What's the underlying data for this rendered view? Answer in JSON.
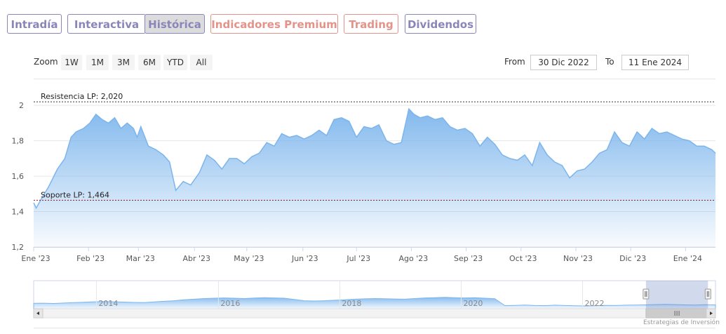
{
  "tabs": [
    {
      "label": "Intradía",
      "active": false,
      "premium": false
    },
    {
      "label": "Interactiva",
      "active": false,
      "premium": false
    },
    {
      "label": "Histórica",
      "active": true,
      "premium": false
    },
    {
      "label": "Indicadores Premium",
      "active": false,
      "premium": true
    },
    {
      "label": "Trading",
      "active": false,
      "premium": true
    },
    {
      "label": "Dividendos",
      "active": false,
      "premium": false
    }
  ],
  "zoom": {
    "label": "Zoom",
    "buttons": [
      "1W",
      "1M",
      "3M",
      "6M",
      "YTD",
      "All"
    ]
  },
  "range": {
    "from_label": "From",
    "from_value": "30 Dic 2022",
    "to_label": "To",
    "to_value": "11 Ene 2024"
  },
  "credit": "Estrategias de Inversión",
  "colors": {
    "accent": "#8a86b8",
    "premium": "#e3938a",
    "series_line": "#7cb5ec",
    "resistance_line": "#333333",
    "support_line": "#8b1a1a"
  },
  "chart_data": {
    "type": "area",
    "title": "",
    "xlabel": "",
    "ylabel": "",
    "ylim": [
      1.2,
      2.08
    ],
    "yticks": [
      {
        "value": 1.2,
        "label": "1,2"
      },
      {
        "value": 1.4,
        "label": "1,4"
      },
      {
        "value": 1.6,
        "label": "1,6"
      },
      {
        "value": 1.8,
        "label": "1,8"
      },
      {
        "value": 2.0,
        "label": "2"
      }
    ],
    "xlim": [
      0,
      54.7
    ],
    "xticks": [
      {
        "week": 0,
        "label": "Ene '23"
      },
      {
        "week": 4.4,
        "label": "Feb '23"
      },
      {
        "week": 8.4,
        "label": "Mar '23"
      },
      {
        "week": 12.9,
        "label": "Abr '23"
      },
      {
        "week": 17.1,
        "label": "May '23"
      },
      {
        "week": 21.6,
        "label": "Jun '23"
      },
      {
        "week": 25.9,
        "label": "Jul '23"
      },
      {
        "week": 30.3,
        "label": "Ago '23"
      },
      {
        "week": 34.7,
        "label": "Sep '23"
      },
      {
        "week": 39.1,
        "label": "Oct '23"
      },
      {
        "week": 43.5,
        "label": "Nov '23"
      },
      {
        "week": 47.9,
        "label": "Dic '23"
      },
      {
        "week": 52.3,
        "label": "Ene '24"
      }
    ],
    "series": [
      {
        "x": [
          0,
          0.2,
          0.6,
          1.2,
          1.9,
          2.5,
          3.0,
          3.4,
          4.0,
          4.5,
          5.0,
          5.5,
          6.0,
          6.5,
          7.0,
          7.5,
          8.0,
          8.3,
          8.6,
          9.2,
          9.8,
          10.4,
          10.9,
          11.4,
          12.0,
          12.6,
          13.3,
          13.9,
          14.5,
          15.1,
          15.7,
          16.3,
          16.9,
          17.5,
          18.1,
          18.7,
          19.3,
          19.9,
          20.5,
          21.1,
          21.7,
          22.3,
          22.9,
          23.5,
          24.1,
          24.7,
          25.3,
          25.9,
          26.5,
          27.1,
          27.7,
          28.3,
          28.9,
          29.5,
          30.1,
          30.5,
          31.0,
          31.6,
          32.2,
          32.8,
          33.4,
          34.0,
          34.6,
          35.2,
          35.8,
          36.4,
          37.0,
          37.6,
          38.2,
          38.8,
          39.4,
          40.0,
          40.6,
          41.2,
          41.8,
          42.4,
          43.0,
          43.6,
          44.2,
          44.8,
          45.4,
          46.0,
          46.6,
          47.2,
          47.8,
          48.4,
          49.0,
          49.6,
          50.2,
          50.8,
          51.4,
          52.0,
          52.6,
          53.2,
          53.8,
          54.4,
          54.7
        ],
        "values": [
          1.45,
          1.42,
          1.47,
          1.54,
          1.64,
          1.7,
          1.82,
          1.85,
          1.87,
          1.9,
          1.95,
          1.92,
          1.9,
          1.93,
          1.87,
          1.9,
          1.87,
          1.82,
          1.88,
          1.77,
          1.75,
          1.72,
          1.68,
          1.52,
          1.57,
          1.55,
          1.62,
          1.72,
          1.69,
          1.64,
          1.7,
          1.7,
          1.67,
          1.71,
          1.73,
          1.79,
          1.77,
          1.84,
          1.82,
          1.83,
          1.81,
          1.83,
          1.86,
          1.83,
          1.92,
          1.93,
          1.91,
          1.82,
          1.88,
          1.87,
          1.89,
          1.8,
          1.78,
          1.79,
          1.98,
          1.95,
          1.93,
          1.94,
          1.92,
          1.93,
          1.88,
          1.86,
          1.87,
          1.84,
          1.77,
          1.82,
          1.78,
          1.72,
          1.7,
          1.69,
          1.72,
          1.66,
          1.79,
          1.72,
          1.68,
          1.66,
          1.59,
          1.63,
          1.64,
          1.68,
          1.73,
          1.75,
          1.85,
          1.79,
          1.77,
          1.85,
          1.81,
          1.87,
          1.84,
          1.85,
          1.83,
          1.81,
          1.8,
          1.77,
          1.77,
          1.75,
          1.73
        ]
      }
    ],
    "plot_lines": [
      {
        "value": 2.02,
        "label": "Resistencia LP: 2,020",
        "style": "dotted",
        "color": "#333333"
      },
      {
        "value": 1.464,
        "label": "Soporte LP: 1,464",
        "style": "dotted",
        "color": "#8b1a1a"
      }
    ],
    "navigator": {
      "year_labels": [
        {
          "frac": 0.092,
          "label": "2014"
        },
        {
          "frac": 0.271,
          "label": "2016"
        },
        {
          "frac": 0.449,
          "label": "2018"
        },
        {
          "frac": 0.627,
          "label": "2020"
        },
        {
          "frac": 0.805,
          "label": "2022"
        }
      ],
      "selection": [
        0.898,
        0.989
      ],
      "shape": [
        0.35,
        0.36,
        0.34,
        0.37,
        0.4,
        0.42,
        0.45,
        0.47,
        0.45,
        0.43,
        0.41,
        0.4,
        0.44,
        0.48,
        0.52,
        0.58,
        0.62,
        0.66,
        0.68,
        0.7,
        0.68,
        0.66,
        0.69,
        0.72,
        0.7,
        0.68,
        0.6,
        0.52,
        0.5,
        0.52,
        0.55,
        0.58,
        0.62,
        0.64,
        0.66,
        0.65,
        0.63,
        0.62,
        0.66,
        0.7,
        0.72,
        0.74,
        0.72,
        0.7,
        0.72,
        0.68,
        0.65,
        0.2,
        0.22,
        0.24,
        0.21,
        0.2,
        0.23,
        0.21,
        0.19,
        0.18,
        0.2,
        0.22,
        0.21,
        0.23,
        0.24,
        0.25,
        0.27,
        0.28,
        0.27,
        0.25,
        0.24,
        0.26,
        0.25
      ]
    }
  }
}
